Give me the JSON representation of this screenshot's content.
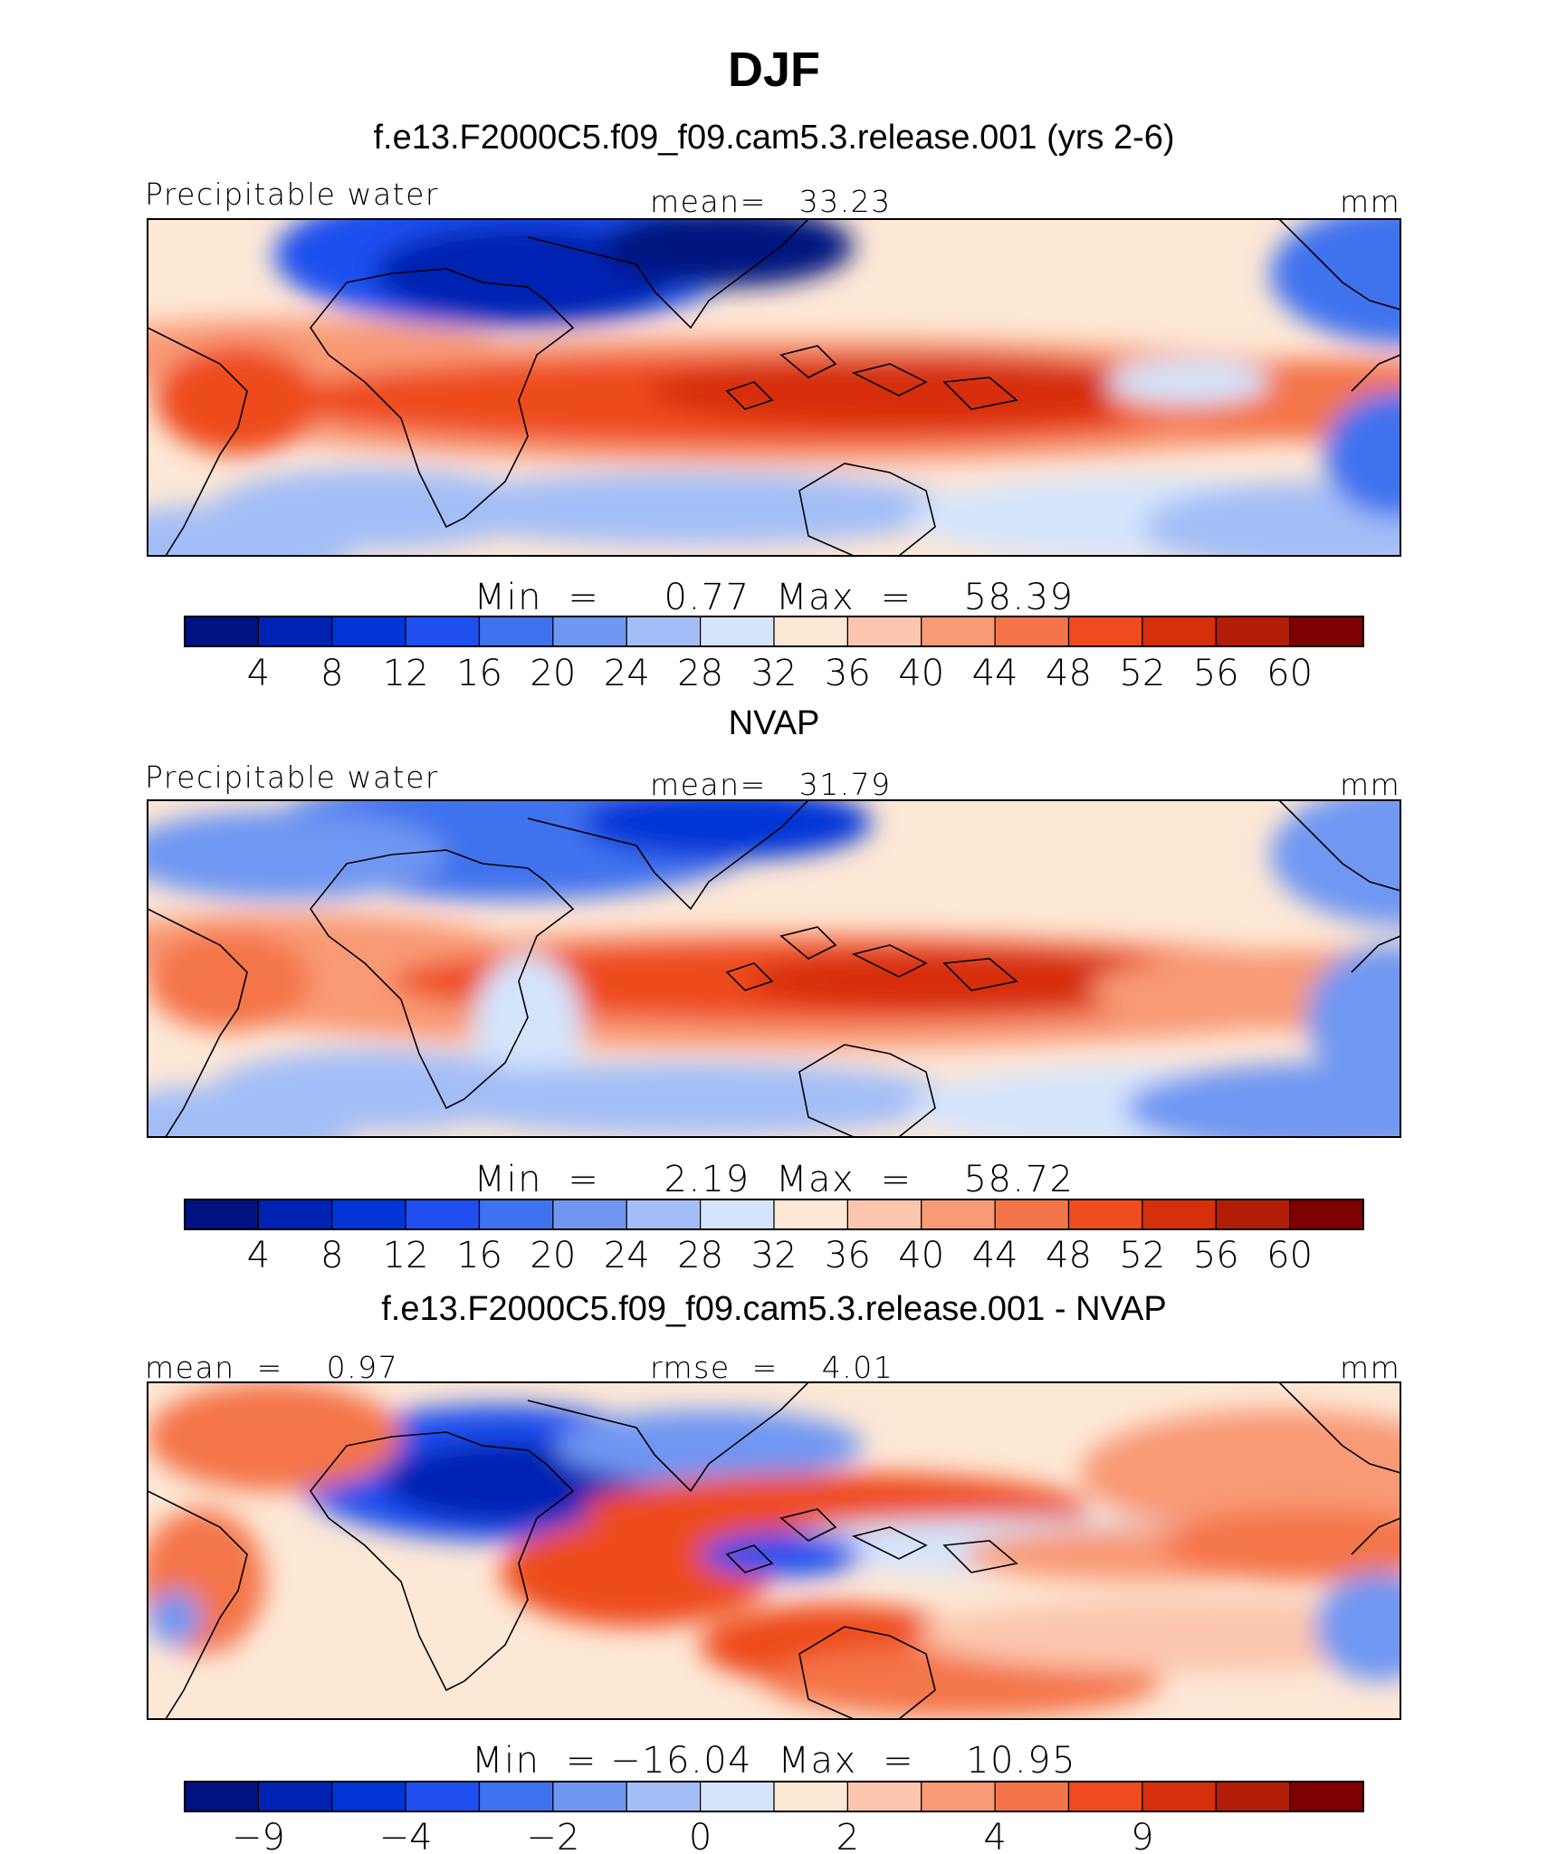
{
  "title": "DJF",
  "colors": {
    "pw_fills": [
      "#00127f",
      "#0022b2",
      "#0034d6",
      "#1f4fee",
      "#3f72ee",
      "#6f97f2",
      "#a3bef6",
      "#d4e4fb",
      "#fde8d6",
      "#fbc6ad",
      "#f89a76",
      "#f4744a",
      "#ee4b1f",
      "#d62f0c",
      "#b21d08",
      "#7f0000"
    ],
    "diff_fills": [
      "#00127f",
      "#0022b2",
      "#0034d6",
      "#1f4fee",
      "#3f72ee",
      "#6f97f2",
      "#a3bef6",
      "#d4e4fb",
      "#fde8d6",
      "#fbc6ad",
      "#f89a76",
      "#f4744a",
      "#ee4b1f",
      "#d62f0c",
      "#b21d08",
      "#7f0000"
    ],
    "coastline": "#000000"
  },
  "panels": [
    {
      "title": "f.e13.F2000C5.f09_f09.cam5.3.release.001 (yrs 2-6)",
      "left_label": "Precipitable water",
      "center_label": "mean=   33.23",
      "right_label": "mm",
      "minmax": "Min  =     0.77  Max  =    58.39",
      "colorbar_ticks": [
        "4",
        "8",
        "12",
        "16",
        "20",
        "24",
        "28",
        "32",
        "36",
        "40",
        "44",
        "48",
        "52",
        "56",
        "60"
      ]
    },
    {
      "title": "NVAP",
      "left_label": "Precipitable water",
      "center_label": "mean=   31.79",
      "right_label": "mm",
      "minmax": "Min  =     2.19  Max  =    58.72",
      "colorbar_ticks": [
        "4",
        "8",
        "12",
        "16",
        "20",
        "24",
        "28",
        "32",
        "36",
        "40",
        "44",
        "48",
        "52",
        "56",
        "60"
      ]
    },
    {
      "title": "f.e13.F2000C5.f09_f09.cam5.3.release.001 - NVAP",
      "left_label": "mean  =    0.97",
      "center_label": "rmse  =    4.01",
      "right_label": "mm",
      "minmax": "Min  = −16.04  Max  =    10.95",
      "colorbar_ticks": [
        "−9",
        "",
        "−4",
        "",
        "−2",
        "",
        "0",
        "",
        "2",
        "",
        "4",
        "",
        "9"
      ]
    }
  ],
  "chart_data": [
    {
      "type": "heatmap",
      "title": "f.e13.F2000C5.f09_f09.cam5.3.release.001 (yrs 2-6)",
      "variable": "Precipitable water",
      "units": "mm",
      "mean": 33.23,
      "min": 0.77,
      "max": 58.39,
      "contour_levels": [
        4,
        8,
        12,
        16,
        20,
        24,
        28,
        32,
        36,
        40,
        44,
        48,
        52,
        56,
        60
      ]
    },
    {
      "type": "heatmap",
      "title": "NVAP",
      "variable": "Precipitable water",
      "units": "mm",
      "mean": 31.79,
      "min": 2.19,
      "max": 58.72,
      "contour_levels": [
        4,
        8,
        12,
        16,
        20,
        24,
        28,
        32,
        36,
        40,
        44,
        48,
        52,
        56,
        60
      ]
    },
    {
      "type": "heatmap",
      "title": "f.e13.F2000C5.f09_f09.cam5.3.release.001 - NVAP",
      "units": "mm",
      "mean": 0.97,
      "rmse": 4.01,
      "min": -16.04,
      "max": 10.95,
      "contour_levels": [
        -9,
        -4,
        -2,
        0,
        2,
        4,
        9
      ]
    }
  ]
}
